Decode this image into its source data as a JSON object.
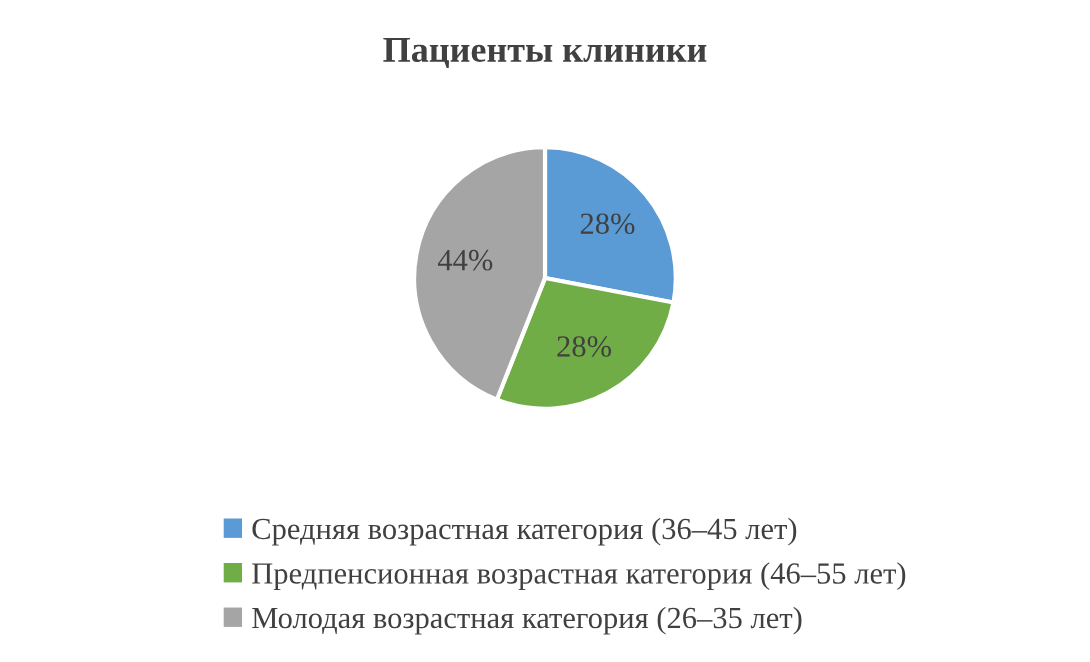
{
  "chart_data": {
    "type": "pie",
    "title": "Пациенты клиники",
    "categories": [
      "Средняя возрастная категория (36–45 лет)",
      "Предпенсионная возрастная категория (46–55 лет)",
      "Молодая возрастная категория (26–35 лет)"
    ],
    "values": [
      28,
      28,
      44
    ],
    "colors": [
      "#5b9bd5",
      "#70ad47",
      "#a5a5a5"
    ],
    "value_labels": [
      "28%",
      "28%",
      "44%"
    ],
    "legend": "bottom"
  }
}
